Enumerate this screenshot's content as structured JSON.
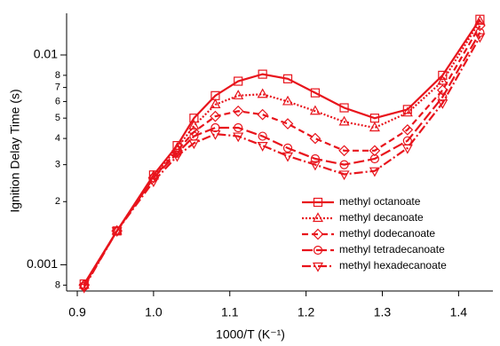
{
  "chart_data": {
    "type": "line",
    "x_label": "1000/T (K⁻¹)",
    "y_label": "Ignition Delay Time (s)",
    "x": [
      0.909,
      0.952,
      1.0,
      1.031,
      1.053,
      1.081,
      1.111,
      1.143,
      1.176,
      1.212,
      1.25,
      1.29,
      1.333,
      1.379,
      1.428
    ],
    "series": [
      {
        "name": "methyl octanoate",
        "color": "#e8141c",
        "marker": "square",
        "dash": "solid",
        "values": [
          0.00081,
          0.00145,
          0.00268,
          0.0037,
          0.005,
          0.0064,
          0.0075,
          0.0081,
          0.0077,
          0.0066,
          0.0056,
          0.005,
          0.0055,
          0.008,
          0.0148
        ]
      },
      {
        "name": "methyl decanoate",
        "color": "#e8141c",
        "marker": "triangle",
        "dash": "dotted",
        "values": [
          0.0008,
          0.00145,
          0.00265,
          0.0036,
          0.0046,
          0.0058,
          0.0064,
          0.0065,
          0.006,
          0.0054,
          0.0048,
          0.0045,
          0.0053,
          0.0075,
          0.0145
        ]
      },
      {
        "name": "methyl dodecanoate",
        "color": "#e8141c",
        "marker": "diamond",
        "dash": "dashed",
        "values": [
          0.0008,
          0.00145,
          0.0026,
          0.0035,
          0.0043,
          0.0051,
          0.0054,
          0.0052,
          0.0047,
          0.004,
          0.0035,
          0.0035,
          0.0044,
          0.0068,
          0.0138
        ]
      },
      {
        "name": "methyl tetradecanoate",
        "color": "#e8141c",
        "marker": "circle",
        "dash": "longdash",
        "values": [
          0.00079,
          0.00145,
          0.0026,
          0.0034,
          0.0041,
          0.0045,
          0.0045,
          0.0041,
          0.0036,
          0.0032,
          0.003,
          0.0032,
          0.0039,
          0.0063,
          0.0128
        ]
      },
      {
        "name": "methyl hexadecanoate",
        "color": "#e8141c",
        "marker": "triangle-down",
        "dash": "dashdot",
        "values": [
          0.00078,
          0.00145,
          0.0025,
          0.0033,
          0.0038,
          0.0042,
          0.0041,
          0.0037,
          0.0033,
          0.003,
          0.0027,
          0.0028,
          0.0036,
          0.0059,
          0.0122
        ]
      }
    ],
    "xlim": [
      0.886,
      1.445
    ],
    "ylim": [
      0.00075,
      0.0158
    ],
    "y_log": true,
    "xticks": [
      0.9,
      {
        "value": 1.0,
        "label": "1.0"
      },
      1.1,
      1.2,
      1.3,
      1.4
    ],
    "yticks": [
      {
        "value": 0.0008,
        "label": "8"
      },
      0.001,
      {
        "value": 0.002,
        "label": "2"
      },
      {
        "value": 0.003,
        "label": "3"
      },
      {
        "value": 0.004,
        "label": "4"
      },
      {
        "value": 0.005,
        "label": "5"
      },
      {
        "value": 0.006,
        "label": "6"
      },
      {
        "value": 0.007,
        "label": "7"
      },
      {
        "value": 0.008,
        "label": "8"
      },
      0.01
    ],
    "legend": "lower right"
  }
}
